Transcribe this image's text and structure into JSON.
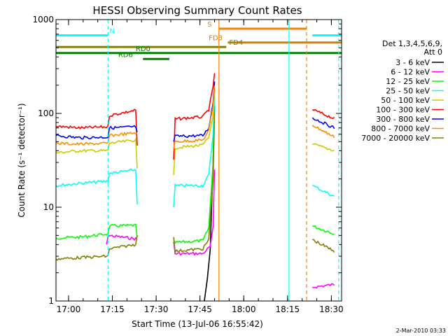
{
  "chart_data": {
    "type": "line",
    "title": "HESSI Observing Summary Count Rates",
    "xlabel": "Start Time (13-Jul-06 16:55:42)",
    "ylabel": "Count Rate (s⁻¹ detector⁻¹)",
    "yscale": "log",
    "ylim": [
      1,
      1000
    ],
    "xlim": [
      "16:55:42",
      "18:33:30"
    ],
    "x_ticks": [
      "17:00",
      "17:15",
      "17:30",
      "17:45",
      "18:00",
      "18:15",
      "18:30"
    ],
    "y_ticks": [
      "1",
      "10",
      "100",
      "1000"
    ],
    "grid": false,
    "legend": {
      "position": "right",
      "header_line1": "Det 1,3,4,5,6,9,",
      "header_line2": "Att 0"
    },
    "series": [
      {
        "name": "3 - 6 keV",
        "color": "#000000",
        "points": [
          [
            "16:55:42",
            1.0
          ],
          [
            "17:46:30",
            1.0
          ],
          [
            "17:47:30",
            1.7
          ],
          [
            "17:48:30",
            3.5
          ],
          [
            "17:49:30",
            30
          ],
          [
            "17:50:00",
            120
          ]
        ]
      },
      {
        "name": "6 - 12 keV",
        "color": "#ff00ff",
        "points": [
          [
            "17:13:00",
            4.0
          ],
          [
            "17:13:30",
            5.0
          ],
          [
            "17:23:00",
            4.6
          ],
          [
            "17:23:30",
            4.5
          ],
          [
            "17:36:00",
            4.3
          ],
          [
            "17:36:30",
            3.2
          ],
          [
            "17:46:00",
            3.2
          ],
          [
            "17:48:30",
            3.8
          ],
          [
            "17:49:30",
            6
          ],
          [
            "17:50:00",
            25
          ],
          [
            "18:23:30",
            1.4
          ],
          [
            "18:31:00",
            1.5
          ]
        ]
      },
      {
        "name": "12 - 25 keV",
        "color": "#00ff00",
        "points": [
          [
            "16:55:42",
            4.7
          ],
          [
            "17:04:00",
            4.8
          ],
          [
            "17:13:30",
            5.2
          ],
          [
            "17:14:00",
            6.3
          ],
          [
            "17:23:00",
            6.4
          ],
          [
            "17:23:30",
            4.6
          ],
          [
            "17:36:00",
            4.5
          ],
          [
            "17:36:30",
            4.2
          ],
          [
            "17:46:00",
            4.4
          ],
          [
            "17:48:00",
            6
          ],
          [
            "17:49:30",
            30
          ],
          [
            "17:50:00",
            180
          ],
          [
            "18:23:30",
            6.3
          ],
          [
            "18:31:00",
            5.2
          ]
        ]
      },
      {
        "name": "25 - 50 keV",
        "color": "#00ffff",
        "points": [
          [
            "16:55:42",
            17
          ],
          [
            "17:04:00",
            18
          ],
          [
            "17:13:30",
            19
          ],
          [
            "17:14:00",
            23
          ],
          [
            "17:23:00",
            25
          ],
          [
            "17:23:30",
            11
          ],
          [
            "17:36:00",
            10
          ],
          [
            "17:36:30",
            17
          ],
          [
            "17:46:00",
            17
          ],
          [
            "17:48:00",
            22
          ],
          [
            "17:49:30",
            60
          ],
          [
            "17:50:00",
            150
          ],
          [
            "18:23:30",
            17
          ],
          [
            "18:31:00",
            13
          ]
        ]
      },
      {
        "name": "50 - 100 keV",
        "color": "#cccc00",
        "points": [
          [
            "16:55:42",
            38
          ],
          [
            "17:04:00",
            40
          ],
          [
            "17:13:30",
            40
          ],
          [
            "17:14:00",
            48
          ],
          [
            "17:23:00",
            52
          ],
          [
            "17:23:30",
            25
          ],
          [
            "17:36:00",
            22
          ],
          [
            "17:36:30",
            43
          ],
          [
            "17:46:00",
            46
          ],
          [
            "17:48:00",
            55
          ],
          [
            "17:49:30",
            95
          ],
          [
            "17:50:00",
            170
          ],
          [
            "18:23:30",
            47
          ],
          [
            "18:31:00",
            40
          ]
        ]
      },
      {
        "name": "100 - 300 keV",
        "color": "#ff0000",
        "points": [
          [
            "16:55:42",
            73
          ],
          [
            "17:04:00",
            70
          ],
          [
            "17:13:30",
            72
          ],
          [
            "17:14:00",
            95
          ],
          [
            "17:23:00",
            108
          ],
          [
            "17:23:30",
            45
          ],
          [
            "17:36:00",
            32
          ],
          [
            "17:36:30",
            87
          ],
          [
            "17:46:00",
            92
          ],
          [
            "17:48:00",
            110
          ],
          [
            "17:49:30",
            190
          ],
          [
            "17:50:00",
            270
          ],
          [
            "18:23:30",
            110
          ],
          [
            "18:31:00",
            88
          ]
        ]
      },
      {
        "name": "300 - 800 keV",
        "color": "#0000ff",
        "points": [
          [
            "16:55:42",
            58
          ],
          [
            "17:04:00",
            55
          ],
          [
            "17:13:30",
            56
          ],
          [
            "17:14:00",
            70
          ],
          [
            "17:23:00",
            72
          ],
          [
            "17:23:30",
            62
          ],
          [
            "17:36:00",
            50
          ],
          [
            "17:36:30",
            57
          ],
          [
            "17:46:00",
            58
          ],
          [
            "17:48:00",
            70
          ],
          [
            "17:49:30",
            130
          ],
          [
            "17:50:00",
            220
          ],
          [
            "18:23:30",
            90
          ],
          [
            "18:31:00",
            70
          ]
        ]
      },
      {
        "name": "800 - 7000 keV",
        "color": "#ff8c00",
        "points": [
          [
            "16:55:42",
            48
          ],
          [
            "17:04:00",
            47
          ],
          [
            "17:13:30",
            48
          ],
          [
            "17:14:00",
            58
          ],
          [
            "17:23:00",
            62
          ],
          [
            "17:23:30",
            60
          ],
          [
            "17:36:00",
            42
          ],
          [
            "17:36:30",
            50
          ],
          [
            "17:46:00",
            52
          ],
          [
            "17:48:00",
            65
          ],
          [
            "17:49:30",
            120
          ],
          [
            "17:50:00",
            200
          ],
          [
            "18:23:30",
            75
          ],
          [
            "18:31:00",
            56
          ]
        ]
      },
      {
        "name": "7000 - 20000 keV",
        "color": "#808000",
        "points": [
          [
            "16:55:42",
            2.8
          ],
          [
            "17:04:00",
            2.9
          ],
          [
            "17:13:30",
            3.0
          ],
          [
            "17:14:00",
            3.6
          ],
          [
            "17:23:00",
            4.0
          ],
          [
            "17:23:30",
            5.2
          ],
          [
            "17:36:00",
            4.8
          ],
          [
            "17:36:30",
            3.4
          ],
          [
            "17:46:00",
            3.6
          ],
          [
            "17:48:00",
            4.5
          ],
          [
            "17:49:30",
            20
          ],
          [
            "17:50:00",
            100
          ],
          [
            "18:23:30",
            4.5
          ],
          [
            "18:31:00",
            3.4
          ]
        ]
      }
    ],
    "state_bars": [
      {
        "label": "N",
        "color": "#00ffff",
        "y": 680,
        "segments": [
          [
            "16:55:42",
            "17:13:30"
          ],
          [
            "18:23:30",
            "18:33:30"
          ]
        ],
        "label_at": "17:14:00"
      },
      {
        "label": "S",
        "color": "#ff8000",
        "y": 800,
        "segments": [
          [
            "17:51:30",
            "18:21:30"
          ]
        ],
        "label_at": "17:47:30"
      },
      {
        "label": "FD3",
        "color": "#d08000",
        "y": 570,
        "segments": [
          [
            "17:54:30",
            "18:33:30"
          ]
        ],
        "label_at": "17:48:00"
      },
      {
        "label": "FD4",
        "color": "#808000",
        "y": 510,
        "segments": [
          [
            "16:55:42",
            "17:54:00"
          ]
        ],
        "label_at": "17:55:00"
      },
      {
        "label": "RD0",
        "color": "#008000",
        "y": 440,
        "segments": [
          [
            "16:55:42",
            "18:33:30"
          ]
        ],
        "label_at": "17:23:00"
      },
      {
        "label": "RD6",
        "color": "#008000",
        "y": 380,
        "segments": [
          [
            "17:25:30",
            "17:34:30"
          ]
        ],
        "label_at": "17:17:00"
      }
    ],
    "vlines": [
      {
        "time": "17:13:30",
        "color": "#00ffff",
        "style": "dashed"
      },
      {
        "time": "17:51:30",
        "color": "#ff8000",
        "style": "solid"
      },
      {
        "time": "18:15:30",
        "color": "#00ffff",
        "style": "solid"
      },
      {
        "time": "18:21:30",
        "color": "#ff8000",
        "style": "dashed"
      },
      {
        "time": "18:32:30",
        "color": "#00ffff",
        "style": "dashed"
      }
    ]
  },
  "footer": {
    "timestamp": "2-Mar-2010 03:33"
  }
}
